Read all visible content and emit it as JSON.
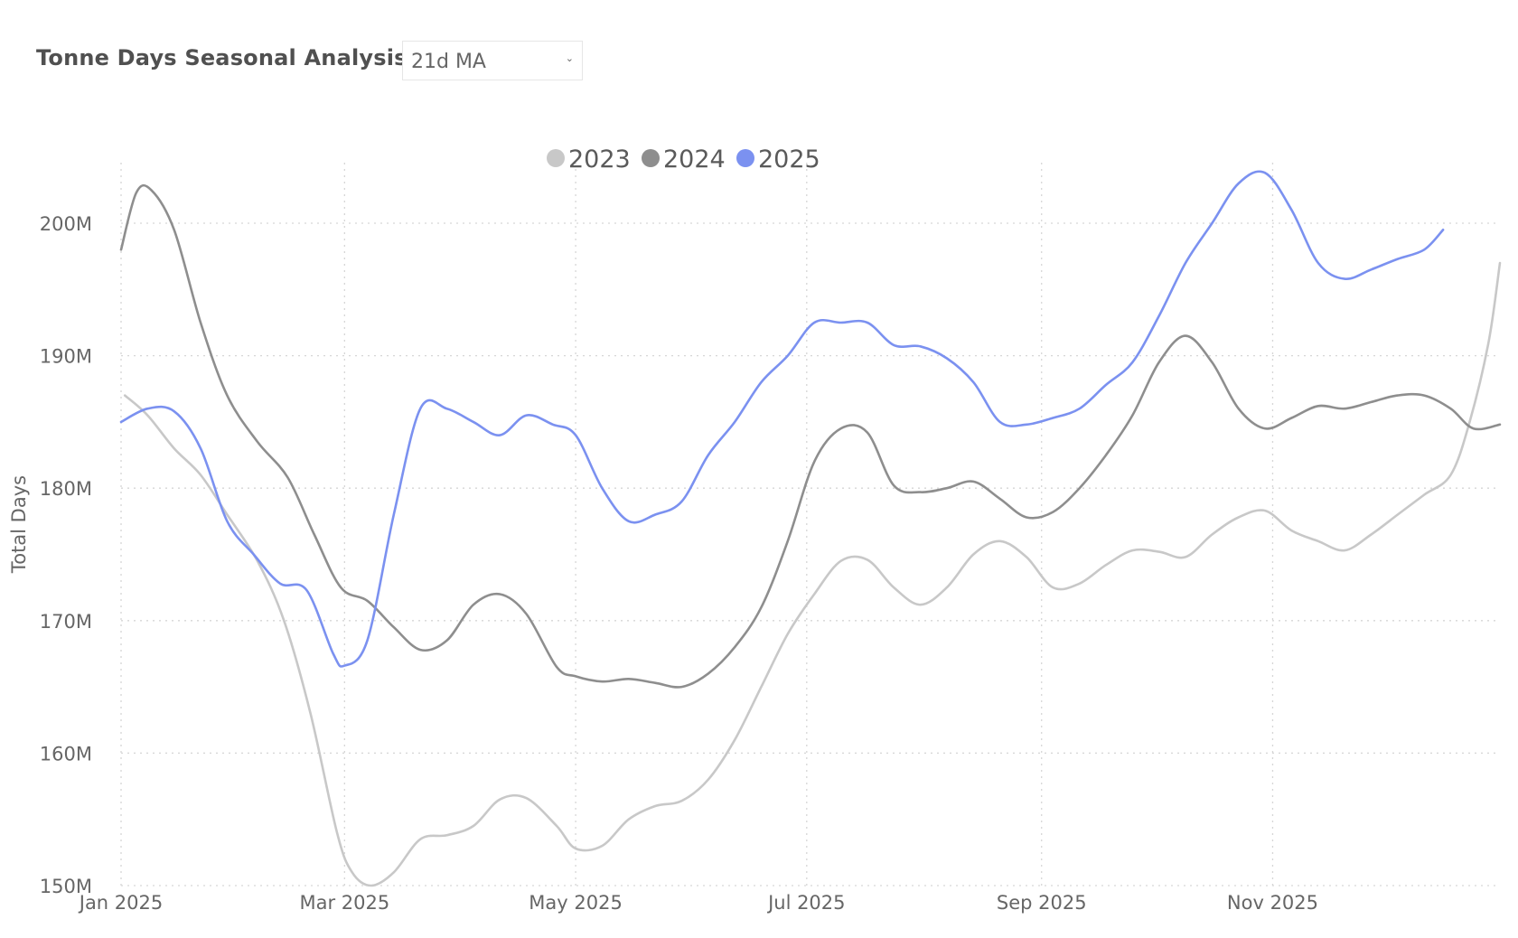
{
  "header": {
    "title": "Tonne Days Seasonal Analysis",
    "dropdown_value": "21d MA"
  },
  "chart_data": {
    "type": "line",
    "ylabel": "Total Days",
    "xlabel": "",
    "ylim": [
      150,
      205
    ],
    "xlim": [
      "2025-01-01",
      "2025-12-31"
    ],
    "y_ticks": [
      {
        "value": 150,
        "label": "150M"
      },
      {
        "value": 160,
        "label": "160M"
      },
      {
        "value": 170,
        "label": "170M"
      },
      {
        "value": 180,
        "label": "180M"
      },
      {
        "value": 190,
        "label": "190M"
      },
      {
        "value": 200,
        "label": "200M"
      }
    ],
    "x_ticks": [
      {
        "value": "2025-01-01",
        "label": "Jan 2025"
      },
      {
        "value": "2025-03-01",
        "label": "Mar 2025"
      },
      {
        "value": "2025-05-01",
        "label": "May 2025"
      },
      {
        "value": "2025-07-01",
        "label": "Jul 2025"
      },
      {
        "value": "2025-09-01",
        "label": "Sep 2025"
      },
      {
        "value": "2025-11-01",
        "label": "Nov 2025"
      }
    ],
    "grid": true,
    "legend_position": "top-center",
    "series": [
      {
        "name": "2023",
        "color": "#c8c8c8",
        "points": [
          [
            "2025-01-02",
            187.0
          ],
          [
            "2025-01-08",
            185.5
          ],
          [
            "2025-01-15",
            183.0
          ],
          [
            "2025-01-22",
            181.0
          ],
          [
            "2025-01-29",
            178.0
          ],
          [
            "2025-02-06",
            174.5
          ],
          [
            "2025-02-13",
            170.0
          ],
          [
            "2025-02-20",
            163.0
          ],
          [
            "2025-02-27",
            154.0
          ],
          [
            "2025-03-03",
            151.0
          ],
          [
            "2025-03-08",
            150.0
          ],
          [
            "2025-03-14",
            151.0
          ],
          [
            "2025-03-21",
            153.5
          ],
          [
            "2025-03-28",
            153.8
          ],
          [
            "2025-04-04",
            154.5
          ],
          [
            "2025-04-11",
            156.5
          ],
          [
            "2025-04-18",
            156.6
          ],
          [
            "2025-04-26",
            154.5
          ],
          [
            "2025-05-01",
            152.8
          ],
          [
            "2025-05-08",
            153.0
          ],
          [
            "2025-05-15",
            155.0
          ],
          [
            "2025-05-22",
            156.0
          ],
          [
            "2025-05-29",
            156.4
          ],
          [
            "2025-06-05",
            158.0
          ],
          [
            "2025-06-12",
            161.0
          ],
          [
            "2025-06-19",
            165.0
          ],
          [
            "2025-06-26",
            169.0
          ],
          [
            "2025-07-03",
            172.0
          ],
          [
            "2025-07-10",
            174.5
          ],
          [
            "2025-07-17",
            174.6
          ],
          [
            "2025-07-24",
            172.5
          ],
          [
            "2025-07-31",
            171.2
          ],
          [
            "2025-08-07",
            172.5
          ],
          [
            "2025-08-14",
            175.0
          ],
          [
            "2025-08-21",
            176.0
          ],
          [
            "2025-08-28",
            174.8
          ],
          [
            "2025-09-04",
            172.5
          ],
          [
            "2025-09-11",
            172.8
          ],
          [
            "2025-09-18",
            174.2
          ],
          [
            "2025-09-25",
            175.3
          ],
          [
            "2025-10-02",
            175.2
          ],
          [
            "2025-10-09",
            174.8
          ],
          [
            "2025-10-16",
            176.5
          ],
          [
            "2025-10-23",
            177.8
          ],
          [
            "2025-10-30",
            178.3
          ],
          [
            "2025-11-06",
            176.8
          ],
          [
            "2025-11-13",
            176.0
          ],
          [
            "2025-11-20",
            175.3
          ],
          [
            "2025-11-27",
            176.5
          ],
          [
            "2025-12-04",
            178.0
          ],
          [
            "2025-12-11",
            179.5
          ],
          [
            "2025-12-18",
            181.0
          ],
          [
            "2025-12-23",
            185.0
          ],
          [
            "2025-12-28",
            191.0
          ],
          [
            "2025-12-31",
            197.0
          ]
        ]
      },
      {
        "name": "2024",
        "color": "#8e8e8e",
        "points": [
          [
            "2025-01-01",
            198.0
          ],
          [
            "2025-01-05",
            202.3
          ],
          [
            "2025-01-09",
            202.5
          ],
          [
            "2025-01-15",
            199.5
          ],
          [
            "2025-01-22",
            192.5
          ],
          [
            "2025-01-29",
            187.0
          ],
          [
            "2025-02-06",
            183.5
          ],
          [
            "2025-02-14",
            180.8
          ],
          [
            "2025-02-21",
            176.5
          ],
          [
            "2025-02-28",
            172.5
          ],
          [
            "2025-03-07",
            171.5
          ],
          [
            "2025-03-14",
            169.5
          ],
          [
            "2025-03-21",
            167.8
          ],
          [
            "2025-03-28",
            168.5
          ],
          [
            "2025-04-04",
            171.2
          ],
          [
            "2025-04-11",
            172.0
          ],
          [
            "2025-04-18",
            170.5
          ],
          [
            "2025-04-26",
            166.5
          ],
          [
            "2025-05-01",
            165.8
          ],
          [
            "2025-05-08",
            165.4
          ],
          [
            "2025-05-15",
            165.6
          ],
          [
            "2025-05-22",
            165.3
          ],
          [
            "2025-05-29",
            165.0
          ],
          [
            "2025-06-05",
            166.0
          ],
          [
            "2025-06-12",
            168.0
          ],
          [
            "2025-06-19",
            171.0
          ],
          [
            "2025-06-26",
            176.0
          ],
          [
            "2025-07-03",
            182.0
          ],
          [
            "2025-07-10",
            184.5
          ],
          [
            "2025-07-17",
            184.2
          ],
          [
            "2025-07-24",
            180.2
          ],
          [
            "2025-07-31",
            179.7
          ],
          [
            "2025-08-07",
            180.0
          ],
          [
            "2025-08-14",
            180.5
          ],
          [
            "2025-08-21",
            179.2
          ],
          [
            "2025-08-28",
            177.8
          ],
          [
            "2025-09-04",
            178.2
          ],
          [
            "2025-09-11",
            180.0
          ],
          [
            "2025-09-18",
            182.5
          ],
          [
            "2025-09-25",
            185.5
          ],
          [
            "2025-10-02",
            189.5
          ],
          [
            "2025-10-09",
            191.5
          ],
          [
            "2025-10-16",
            189.5
          ],
          [
            "2025-10-23",
            186.0
          ],
          [
            "2025-10-30",
            184.5
          ],
          [
            "2025-11-06",
            185.3
          ],
          [
            "2025-11-13",
            186.2
          ],
          [
            "2025-11-20",
            186.0
          ],
          [
            "2025-11-27",
            186.5
          ],
          [
            "2025-12-04",
            187.0
          ],
          [
            "2025-12-11",
            187.0
          ],
          [
            "2025-12-18",
            186.0
          ],
          [
            "2025-12-24",
            184.5
          ],
          [
            "2025-12-31",
            184.8
          ]
        ]
      },
      {
        "name": "2025",
        "color": "#7b91f0",
        "points": [
          [
            "2025-01-01",
            185.0
          ],
          [
            "2025-01-08",
            186.0
          ],
          [
            "2025-01-15",
            185.8
          ],
          [
            "2025-01-22",
            183.0
          ],
          [
            "2025-01-29",
            177.5
          ],
          [
            "2025-02-05",
            175.0
          ],
          [
            "2025-02-12",
            172.8
          ],
          [
            "2025-02-19",
            172.3
          ],
          [
            "2025-02-26",
            167.5
          ],
          [
            "2025-03-01",
            166.6
          ],
          [
            "2025-03-07",
            168.5
          ],
          [
            "2025-03-14",
            178.0
          ],
          [
            "2025-03-21",
            186.0
          ],
          [
            "2025-03-28",
            186.0
          ],
          [
            "2025-04-04",
            185.0
          ],
          [
            "2025-04-11",
            184.0
          ],
          [
            "2025-04-18",
            185.5
          ],
          [
            "2025-04-25",
            184.8
          ],
          [
            "2025-05-01",
            184.0
          ],
          [
            "2025-05-08",
            180.0
          ],
          [
            "2025-05-15",
            177.5
          ],
          [
            "2025-05-22",
            178.0
          ],
          [
            "2025-05-29",
            179.0
          ],
          [
            "2025-06-05",
            182.5
          ],
          [
            "2025-06-12",
            185.0
          ],
          [
            "2025-06-19",
            188.0
          ],
          [
            "2025-06-26",
            190.0
          ],
          [
            "2025-07-03",
            192.5
          ],
          [
            "2025-07-10",
            192.5
          ],
          [
            "2025-07-17",
            192.5
          ],
          [
            "2025-07-24",
            190.8
          ],
          [
            "2025-07-31",
            190.7
          ],
          [
            "2025-08-07",
            189.8
          ],
          [
            "2025-08-14",
            188.0
          ],
          [
            "2025-08-21",
            185.0
          ],
          [
            "2025-08-28",
            184.8
          ],
          [
            "2025-09-04",
            185.3
          ],
          [
            "2025-09-11",
            186.0
          ],
          [
            "2025-09-18",
            187.8
          ],
          [
            "2025-09-25",
            189.5
          ],
          [
            "2025-10-02",
            193.0
          ],
          [
            "2025-10-09",
            197.0
          ],
          [
            "2025-10-16",
            200.0
          ],
          [
            "2025-10-23",
            203.0
          ],
          [
            "2025-10-30",
            203.8
          ],
          [
            "2025-11-06",
            201.0
          ],
          [
            "2025-11-13",
            197.0
          ],
          [
            "2025-11-20",
            195.8
          ],
          [
            "2025-11-27",
            196.5
          ],
          [
            "2025-12-04",
            197.3
          ],
          [
            "2025-12-11",
            198.0
          ],
          [
            "2025-12-16",
            199.5
          ]
        ]
      }
    ]
  }
}
